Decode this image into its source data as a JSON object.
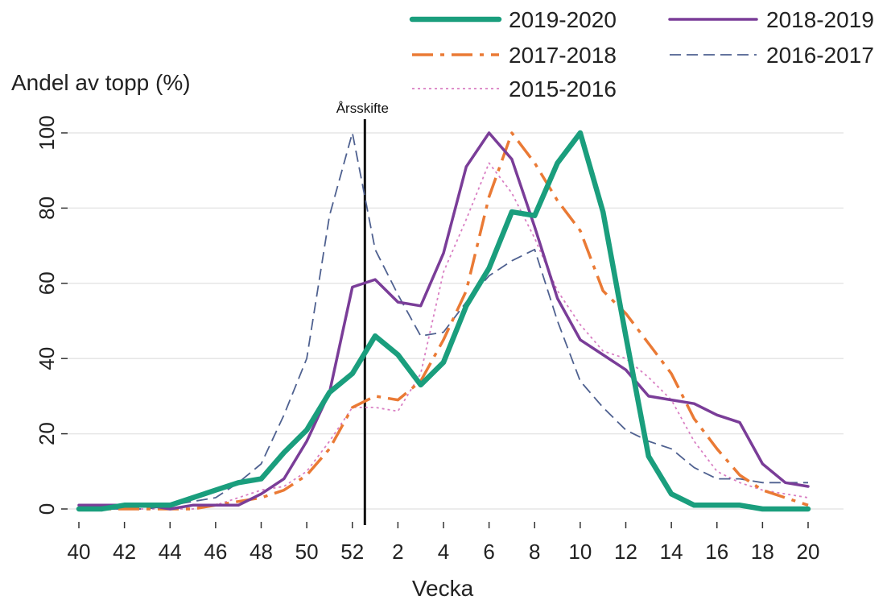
{
  "chart_data": {
    "type": "line",
    "ylabel": "Andel av topp (%)",
    "xlabel": "Vecka",
    "ylim": [
      0,
      100
    ],
    "yticks": [
      0,
      20,
      40,
      60,
      80,
      100
    ],
    "grid": "horizontal",
    "xtick_labels": [
      "40",
      "42",
      "44",
      "46",
      "48",
      "50",
      "52",
      "2",
      "4",
      "6",
      "8",
      "10",
      "12",
      "14",
      "16",
      "18",
      "20"
    ],
    "x": [
      "40",
      "41",
      "42",
      "43",
      "44",
      "45",
      "46",
      "47",
      "48",
      "49",
      "50",
      "51",
      "52",
      "1",
      "2",
      "3",
      "4",
      "5",
      "6",
      "7",
      "8",
      "9",
      "10",
      "11",
      "12",
      "13",
      "14",
      "15",
      "16",
      "17",
      "18",
      "19",
      "20"
    ],
    "legend_position": "top",
    "annotation": {
      "label": "Årsskifte",
      "between_weeks": [
        "52",
        "1"
      ]
    },
    "series": [
      {
        "name": "2019-2020",
        "color": "#1a9e7d",
        "style": "solid-thick",
        "values": [
          0,
          0,
          1,
          1,
          1,
          3,
          5,
          7,
          8,
          15,
          21,
          31,
          36,
          46,
          41,
          33,
          39,
          54,
          64,
          79,
          78,
          92,
          100,
          79,
          46,
          14,
          4,
          1,
          1,
          1,
          0,
          0,
          0
        ]
      },
      {
        "name": "2018-2019",
        "color": "#7a3d98",
        "style": "solid",
        "values": [
          1,
          1,
          1,
          1,
          0,
          1,
          1,
          1,
          4,
          8,
          18,
          31,
          59,
          61,
          55,
          54,
          68,
          91,
          100,
          93,
          75,
          56,
          45,
          41,
          37,
          30,
          29,
          28,
          25,
          23,
          12,
          7,
          6
        ]
      },
      {
        "name": "2017-2018",
        "color": "#ea7a35",
        "style": "dashdot",
        "values": [
          0,
          0,
          0,
          0,
          0,
          0,
          1,
          2,
          3,
          5,
          9,
          16,
          27,
          30,
          29,
          34,
          45,
          58,
          83,
          100,
          92,
          82,
          74,
          58,
          52,
          44,
          36,
          24,
          16,
          9,
          5,
          3,
          1
        ]
      },
      {
        "name": "2016-2017",
        "color": "#4f6190",
        "style": "dashed",
        "values": [
          0,
          0,
          0,
          0,
          1,
          2,
          3,
          7,
          12,
          25,
          40,
          78,
          100,
          69,
          57,
          46,
          47,
          55,
          62,
          66,
          69,
          50,
          34,
          27,
          21,
          18,
          16,
          11,
          8,
          8,
          7,
          7,
          7
        ]
      },
      {
        "name": "2015-2016",
        "color": "#d97fc3",
        "style": "dotted",
        "values": [
          0,
          0,
          0,
          0,
          0,
          0,
          1,
          3,
          5,
          6,
          10,
          18,
          27,
          27,
          26,
          36,
          63,
          77,
          92,
          84,
          72,
          58,
          49,
          42,
          40,
          35,
          29,
          18,
          10,
          7,
          5,
          4,
          3
        ]
      }
    ]
  }
}
